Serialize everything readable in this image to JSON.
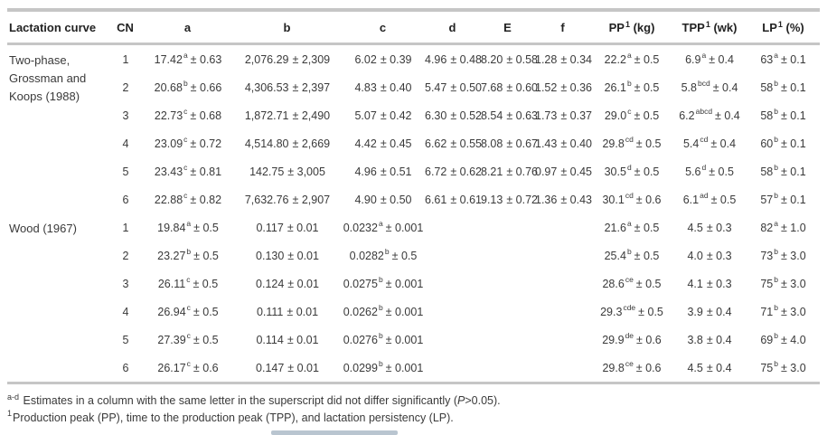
{
  "table": {
    "headers": [
      {
        "pre": "Lactation curve",
        "sup": "",
        "post": ""
      },
      {
        "pre": "CN",
        "sup": "",
        "post": ""
      },
      {
        "pre": "a",
        "sup": "",
        "post": ""
      },
      {
        "pre": "b",
        "sup": "",
        "post": ""
      },
      {
        "pre": "c",
        "sup": "",
        "post": ""
      },
      {
        "pre": "d",
        "sup": "",
        "post": ""
      },
      {
        "pre": "E",
        "sup": "",
        "post": ""
      },
      {
        "pre": "f",
        "sup": "",
        "post": ""
      },
      {
        "pre": "PP",
        "sup": "1",
        "post": " (kg)"
      },
      {
        "pre": "TPP",
        "sup": "1",
        "post": " (wk)"
      },
      {
        "pre": "LP",
        "sup": "1",
        "post": " (%)"
      }
    ],
    "sections": [
      {
        "name_lines": [
          "Two-phase,",
          "Grossman and",
          "Koops (1988)"
        ],
        "rows": [
          {
            "cn": "1",
            "cells": [
              {
                "v": "17.42",
                "s": "a",
                "e": "± 0.63"
              },
              {
                "v": "2,076.29",
                "s": "",
                "e": "± 2,309"
              },
              {
                "v": "6.02",
                "s": "",
                "e": "± 0.39"
              },
              {
                "v": "4.96",
                "s": "",
                "e": "± 0.48"
              },
              {
                "v": "8.20",
                "s": "",
                "e": "± 0.58"
              },
              {
                "v": "1.28",
                "s": "",
                "e": "± 0.34"
              },
              {
                "v": "22.2",
                "s": "a",
                "e": "± 0.5"
              },
              {
                "v": "6.9",
                "s": "a",
                "e": "± 0.4"
              },
              {
                "v": "63",
                "s": "a",
                "e": "± 0.1"
              }
            ]
          },
          {
            "cn": "2",
            "cells": [
              {
                "v": "20.68",
                "s": "b",
                "e": "± 0.66"
              },
              {
                "v": "4,306.53",
                "s": "",
                "e": "± 2,397"
              },
              {
                "v": "4.83",
                "s": "",
                "e": "± 0.40"
              },
              {
                "v": "5.47",
                "s": "",
                "e": "± 0.50"
              },
              {
                "v": "7.68",
                "s": "",
                "e": "± 0.60"
              },
              {
                "v": "1.52",
                "s": "",
                "e": "± 0.36"
              },
              {
                "v": "26.1",
                "s": "b",
                "e": "± 0.5"
              },
              {
                "v": "5.8",
                "s": "bcd",
                "e": "± 0.4"
              },
              {
                "v": "58",
                "s": "b",
                "e": "± 0.1"
              }
            ]
          },
          {
            "cn": "3",
            "cells": [
              {
                "v": "22.73",
                "s": "c",
                "e": "± 0.68"
              },
              {
                "v": "1,872.71",
                "s": "",
                "e": "± 2,490"
              },
              {
                "v": "5.07",
                "s": "",
                "e": "± 0.42"
              },
              {
                "v": "6.30",
                "s": "",
                "e": "± 0.52"
              },
              {
                "v": "8.54",
                "s": "",
                "e": "± 0.63"
              },
              {
                "v": "1.73",
                "s": "",
                "e": "± 0.37"
              },
              {
                "v": "29.0",
                "s": "c",
                "e": "± 0.5"
              },
              {
                "v": "6.2",
                "s": "abcd",
                "e": "± 0.4"
              },
              {
                "v": "58",
                "s": "b",
                "e": "± 0.1"
              }
            ]
          },
          {
            "cn": "4",
            "cells": [
              {
                "v": "23.09",
                "s": "c",
                "e": "± 0.72"
              },
              {
                "v": "4,514.80",
                "s": "",
                "e": "± 2,669"
              },
              {
                "v": "4.42",
                "s": "",
                "e": "± 0.45"
              },
              {
                "v": "6.62",
                "s": "",
                "e": "± 0.55"
              },
              {
                "v": "8.08",
                "s": "",
                "e": "± 0.67"
              },
              {
                "v": "1.43",
                "s": "",
                "e": "± 0.40"
              },
              {
                "v": "29.8",
                "s": "cd",
                "e": "± 0.5"
              },
              {
                "v": "5.4",
                "s": "cd",
                "e": "± 0.4"
              },
              {
                "v": "60",
                "s": "b",
                "e": "± 0.1"
              }
            ]
          },
          {
            "cn": "5",
            "cells": [
              {
                "v": "23.43",
                "s": "c",
                "e": "± 0.81"
              },
              {
                "v": "142.75",
                "s": "",
                "e": "± 3,005"
              },
              {
                "v": "4.96",
                "s": "",
                "e": "± 0.51"
              },
              {
                "v": "6.72",
                "s": "",
                "e": "± 0.62"
              },
              {
                "v": "8.21",
                "s": "",
                "e": "± 0.76"
              },
              {
                "v": "0.97",
                "s": "",
                "e": "± 0.45"
              },
              {
                "v": "30.5",
                "s": "d",
                "e": "± 0.5"
              },
              {
                "v": "5.6",
                "s": "d",
                "e": "± 0.5"
              },
              {
                "v": "58",
                "s": "b",
                "e": "± 0.1"
              }
            ]
          },
          {
            "cn": "6",
            "cells": [
              {
                "v": "22.88",
                "s": "c",
                "e": "± 0.82"
              },
              {
                "v": "7,632.76",
                "s": "",
                "e": "± 2,907"
              },
              {
                "v": "4.90",
                "s": "",
                "e": "± 0.50"
              },
              {
                "v": "6.61",
                "s": "",
                "e": "± 0.61"
              },
              {
                "v": "9.13",
                "s": "",
                "e": "± 0.72"
              },
              {
                "v": "1.36",
                "s": "",
                "e": "± 0.43"
              },
              {
                "v": "30.1",
                "s": "cd",
                "e": "± 0.6"
              },
              {
                "v": "6.1",
                "s": "ad",
                "e": "± 0.5"
              },
              {
                "v": "57",
                "s": "b",
                "e": "± 0.1"
              }
            ]
          }
        ]
      },
      {
        "name_lines": [
          "Wood (1967)"
        ],
        "rows": [
          {
            "cn": "1",
            "cells": [
              {
                "v": "19.84",
                "s": "a",
                "e": "± 0.5"
              },
              {
                "v": "0.117",
                "s": "",
                "e": "± 0.01"
              },
              {
                "v": "0.0232",
                "s": "a",
                "e": "± 0.001"
              },
              {
                "v": "",
                "s": "",
                "e": ""
              },
              {
                "v": "",
                "s": "",
                "e": ""
              },
              {
                "v": "",
                "s": "",
                "e": ""
              },
              {
                "v": "21.6",
                "s": "a",
                "e": "± 0.5"
              },
              {
                "v": "4.5",
                "s": "",
                "e": "± 0.3"
              },
              {
                "v": "82",
                "s": "a",
                "e": "± 1.0"
              }
            ]
          },
          {
            "cn": "2",
            "cells": [
              {
                "v": "23.27",
                "s": "b",
                "e": "± 0.5"
              },
              {
                "v": "0.130",
                "s": "",
                "e": "± 0.01"
              },
              {
                "v": "0.0282",
                "s": "b",
                "e": "± 0.5"
              },
              {
                "v": "",
                "s": "",
                "e": ""
              },
              {
                "v": "",
                "s": "",
                "e": ""
              },
              {
                "v": "",
                "s": "",
                "e": ""
              },
              {
                "v": "25.4",
                "s": "b",
                "e": "± 0.5"
              },
              {
                "v": "4.0",
                "s": "",
                "e": "± 0.3"
              },
              {
                "v": "73",
                "s": "b",
                "e": "± 3.0"
              }
            ]
          },
          {
            "cn": "3",
            "cells": [
              {
                "v": "26.11",
                "s": "c",
                "e": "± 0.5"
              },
              {
                "v": "0.124",
                "s": "",
                "e": "± 0.01"
              },
              {
                "v": "0.0275",
                "s": "b",
                "e": "± 0.001"
              },
              {
                "v": "",
                "s": "",
                "e": ""
              },
              {
                "v": "",
                "s": "",
                "e": ""
              },
              {
                "v": "",
                "s": "",
                "e": ""
              },
              {
                "v": "28.6",
                "s": "ce",
                "e": "± 0.5"
              },
              {
                "v": "4.1",
                "s": "",
                "e": "± 0.3"
              },
              {
                "v": "75",
                "s": "b",
                "e": "± 3.0"
              }
            ]
          },
          {
            "cn": "4",
            "cells": [
              {
                "v": "26.94",
                "s": "c",
                "e": "± 0.5"
              },
              {
                "v": "0.111",
                "s": "",
                "e": "± 0.01"
              },
              {
                "v": "0.0262",
                "s": "b",
                "e": "± 0.001"
              },
              {
                "v": "",
                "s": "",
                "e": ""
              },
              {
                "v": "",
                "s": "",
                "e": ""
              },
              {
                "v": "",
                "s": "",
                "e": ""
              },
              {
                "v": "29.3",
                "s": "cde",
                "e": "± 0.5"
              },
              {
                "v": "3.9",
                "s": "",
                "e": "± 0.4"
              },
              {
                "v": "71",
                "s": "b",
                "e": "± 3.0"
              }
            ]
          },
          {
            "cn": "5",
            "cells": [
              {
                "v": "27.39",
                "s": "c",
                "e": "± 0.5"
              },
              {
                "v": "0.114",
                "s": "",
                "e": "± 0.01"
              },
              {
                "v": "0.0276",
                "s": "b",
                "e": "± 0.001"
              },
              {
                "v": "",
                "s": "",
                "e": ""
              },
              {
                "v": "",
                "s": "",
                "e": ""
              },
              {
                "v": "",
                "s": "",
                "e": ""
              },
              {
                "v": "29.9",
                "s": "de",
                "e": "± 0.6"
              },
              {
                "v": "3.8",
                "s": "",
                "e": "± 0.4"
              },
              {
                "v": "69",
                "s": "b",
                "e": "± 4.0"
              }
            ]
          },
          {
            "cn": "6",
            "cells": [
              {
                "v": "26.17",
                "s": "c",
                "e": "± 0.6"
              },
              {
                "v": "0.147",
                "s": "",
                "e": "± 0.01"
              },
              {
                "v": "0.0299",
                "s": "b",
                "e": "± 0.001"
              },
              {
                "v": "",
                "s": "",
                "e": ""
              },
              {
                "v": "",
                "s": "",
                "e": ""
              },
              {
                "v": "",
                "s": "",
                "e": ""
              },
              {
                "v": "29.8",
                "s": "ce",
                "e": "± 0.6"
              },
              {
                "v": "4.5",
                "s": "",
                "e": "± 0.4"
              },
              {
                "v": "75",
                "s": "b",
                "e": "± 3.0"
              }
            ]
          }
        ]
      }
    ]
  },
  "footnotes": [
    {
      "sup": "a-d",
      "t1": " Estimates in a column with the same letter in the superscript did not differ significantly (",
      "em": "P",
      "t2": ">0.05)."
    },
    {
      "sup": "1",
      "t1": "Production peak (PP), time to the production peak (TPP), and lactation persistency (LP).",
      "em": "",
      "t2": ""
    }
  ],
  "colors": {
    "rule": "#c6c6c6",
    "text": "#3a3a3a",
    "scroll_thumb": "#b9c5d0"
  }
}
